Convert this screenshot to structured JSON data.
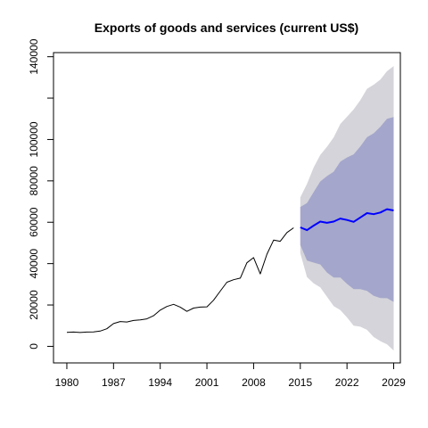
{
  "chart_data": {
    "type": "line",
    "title": "Exports of goods and services (current US$)",
    "xlabel": "",
    "ylabel": "",
    "xlim": [
      1978,
      2030
    ],
    "ylim": [
      -8000,
      142000
    ],
    "x_ticks": [
      1980,
      1987,
      1994,
      2001,
      2008,
      2015,
      2022,
      2029
    ],
    "y_ticks": [
      0,
      20000,
      40000,
      60000,
      80000,
      100000,
      140000
    ],
    "y_tick_marks": [
      0,
      20000,
      40000,
      60000,
      80000,
      100000,
      120000,
      140000
    ],
    "grid": false,
    "colors": {
      "history": "#000000",
      "forecast_mean": "#0000ff",
      "interval_80": "#a4a6cb",
      "interval_95": "#d4d4da"
    },
    "history": {
      "x": [
        1980,
        1981,
        1982,
        1983,
        1984,
        1985,
        1986,
        1987,
        1988,
        1989,
        1990,
        1991,
        1992,
        1993,
        1994,
        1995,
        1996,
        1997,
        1998,
        1999,
        2000,
        2001,
        2002,
        2003,
        2004,
        2005,
        2006,
        2007,
        2008,
        2009,
        2010,
        2011,
        2012,
        2013,
        2014
      ],
      "y": [
        6800,
        6900,
        6700,
        6900,
        7000,
        7400,
        8500,
        11000,
        12000,
        11800,
        12500,
        12800,
        13300,
        14800,
        17500,
        19300,
        20300,
        19000,
        16900,
        18500,
        19000,
        19100,
        22300,
        26700,
        31000,
        32200,
        33000,
        40400,
        42900,
        35000,
        44600,
        51400,
        50800,
        55000,
        57300
      ]
    },
    "forecast": {
      "x": [
        2015,
        2016,
        2017,
        2018,
        2019,
        2020,
        2021,
        2022,
        2023,
        2024,
        2025,
        2026,
        2027,
        2028,
        2029
      ],
      "mean": [
        57500,
        56200,
        58400,
        60300,
        59700,
        60300,
        61800,
        61100,
        60200,
        62300,
        64400,
        63900,
        64700,
        66300,
        65700
      ],
      "lo80": [
        49000,
        41500,
        40500,
        39600,
        35700,
        33300,
        33300,
        30200,
        27700,
        27700,
        26800,
        24400,
        23400,
        23300,
        21500
      ],
      "hi80": [
        67400,
        69300,
        74600,
        79700,
        82300,
        84400,
        89300,
        91300,
        92800,
        96600,
        101100,
        103000,
        106200,
        110000,
        110900
      ],
      "lo95": [
        45000,
        33500,
        30500,
        28500,
        24000,
        19500,
        17500,
        14000,
        10000,
        9500,
        8000,
        4500,
        2500,
        1000,
        -2000
      ],
      "hi95": [
        72000,
        78500,
        86500,
        92500,
        96500,
        101000,
        107500,
        111000,
        114500,
        119000,
        124500,
        126500,
        129000,
        133000,
        135500
      ]
    }
  }
}
